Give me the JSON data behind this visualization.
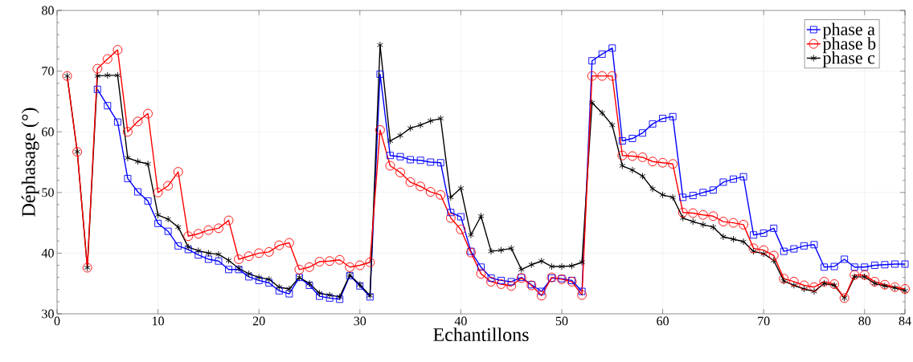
{
  "chart_data": {
    "type": "line",
    "xlabel": "Echantillons",
    "ylabel": "Déphasage (°)",
    "x": [
      1,
      2,
      3,
      4,
      5,
      6,
      7,
      8,
      9,
      10,
      11,
      12,
      13,
      14,
      15,
      16,
      17,
      18,
      19,
      20,
      21,
      22,
      23,
      24,
      25,
      26,
      27,
      28,
      29,
      30,
      31,
      32,
      33,
      34,
      35,
      36,
      37,
      38,
      39,
      40,
      41,
      42,
      43,
      44,
      45,
      46,
      47,
      48,
      49,
      50,
      51,
      52,
      53,
      54,
      55,
      56,
      57,
      58,
      59,
      60,
      61,
      62,
      63,
      64,
      65,
      66,
      67,
      68,
      69,
      70,
      71,
      72,
      73,
      74,
      75,
      76,
      77,
      78,
      79,
      80,
      81,
      82,
      83,
      84
    ],
    "series": [
      {
        "name": "phase a",
        "color": "#0000ff",
        "marker": "square",
        "values": [
          null,
          null,
          null,
          67.0,
          64.3,
          61.6,
          52.3,
          50.1,
          48.6,
          44.9,
          43.6,
          41.2,
          40.6,
          39.7,
          39.0,
          38.7,
          37.3,
          37.3,
          36.1,
          35.5,
          35.1,
          33.8,
          33.3,
          36.0,
          34.7,
          32.9,
          32.6,
          32.4,
          36.3,
          34.6,
          32.8,
          69.5,
          56.1,
          55.9,
          55.4,
          55.3,
          55.0,
          54.9,
          46.7,
          46.0,
          40.3,
          37.7,
          35.9,
          35.5,
          35.3,
          36.0,
          34.8,
          33.7,
          35.9,
          35.8,
          35.5,
          33.7,
          71.7,
          72.8,
          73.8,
          58.5,
          58.9,
          59.8,
          61.3,
          62.2,
          62.5,
          49.2,
          49.5,
          50.0,
          50.4,
          51.7,
          52.2,
          52.6,
          43.0,
          43.3,
          44.1,
          40.3,
          40.7,
          41.2,
          41.4,
          37.7,
          37.8,
          39.0,
          37.7,
          37.7,
          38.0,
          38.1,
          38.2,
          38.2
        ]
      },
      {
        "name": "phase b",
        "color": "#ff0000",
        "marker": "circle",
        "values": [
          69.2,
          56.7,
          37.6,
          70.4,
          72.0,
          73.5,
          60.0,
          61.7,
          63.0,
          50.0,
          51.1,
          53.4,
          42.8,
          43.2,
          43.8,
          44.1,
          45.4,
          39.0,
          39.5,
          40.0,
          40.2,
          41.3,
          41.7,
          37.3,
          37.7,
          38.6,
          38.7,
          38.9,
          37.7,
          38.0,
          38.5,
          60.3,
          54.4,
          53.3,
          51.7,
          51.0,
          50.1,
          49.6,
          45.8,
          43.9,
          40.1,
          36.6,
          35.3,
          34.9,
          34.6,
          35.9,
          34.7,
          33.0,
          36.0,
          35.7,
          35.3,
          33.1,
          69.2,
          69.2,
          69.2,
          56.1,
          56.0,
          55.8,
          55.1,
          54.9,
          54.7,
          46.7,
          46.6,
          46.3,
          46.1,
          45.2,
          45.0,
          44.7,
          40.8,
          40.5,
          39.6,
          35.8,
          35.3,
          34.7,
          34.4,
          35.3,
          34.9,
          32.6,
          36.4,
          36.4,
          35.3,
          34.8,
          34.4,
          34.1
        ]
      },
      {
        "name": "phase c",
        "color": "#000000",
        "marker": "cross",
        "values": [
          69.2,
          56.7,
          37.6,
          69.2,
          69.3,
          69.3,
          55.7,
          55.1,
          54.7,
          46.3,
          45.6,
          44.3,
          41.0,
          40.4,
          40.0,
          39.8,
          38.8,
          37.5,
          36.6,
          36.0,
          35.7,
          34.4,
          34.1,
          36.0,
          35.0,
          33.4,
          33.1,
          32.8,
          36.4,
          34.8,
          33.0,
          74.3,
          58.5,
          59.4,
          60.6,
          61.1,
          61.8,
          62.2,
          49.2,
          50.7,
          43.0,
          46.1,
          40.3,
          40.5,
          40.8,
          37.3,
          38.1,
          38.7,
          37.8,
          37.8,
          37.9,
          38.5,
          64.8,
          63.1,
          61.1,
          54.4,
          53.7,
          52.7,
          50.6,
          49.6,
          49.2,
          45.8,
          45.2,
          44.7,
          44.3,
          42.7,
          42.3,
          41.9,
          40.3,
          39.9,
          38.8,
          35.4,
          34.7,
          34.1,
          33.7,
          35.0,
          34.7,
          32.6,
          36.1,
          36.1,
          35.0,
          34.6,
          34.3,
          33.8
        ]
      }
    ],
    "xlim": [
      0,
      84
    ],
    "ylim": [
      30,
      80
    ],
    "xticks": [
      0,
      10,
      20,
      30,
      40,
      50,
      60,
      70,
      80,
      84
    ],
    "yticks": [
      30,
      40,
      50,
      60,
      70,
      80
    ],
    "grid": true,
    "legend": "top right",
    "line_style": "solid"
  }
}
